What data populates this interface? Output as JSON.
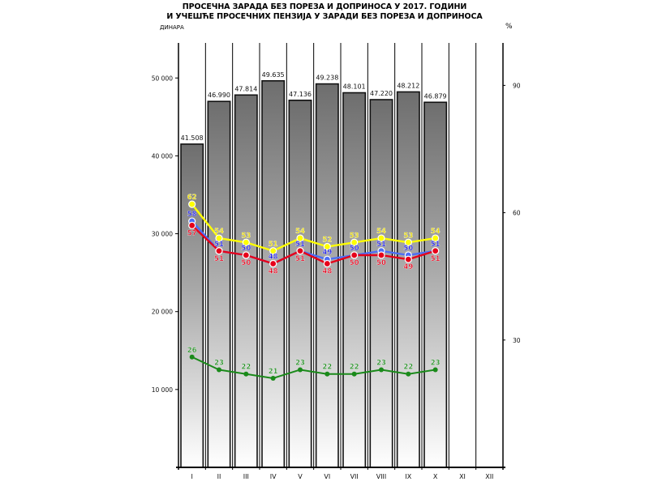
{
  "chart_data": {
    "type": "bar",
    "title": "ПРОСЕЧНА ЗАРАДА БЕЗ ПОРЕЗА И ДОПРИНОСА  У 2017. ГОДИНИ",
    "subtitle": "И УЧЕШЋЕ ПРОСЕЧНИХ ПЕНЗИЈА У ЗАРАДИ БЕЗ ПОРЕЗА И ДОПРИНОСА",
    "ylabel_left": "ДИНАРА",
    "ylabel_right": "%",
    "categories": [
      "I",
      "II",
      "III",
      "IV",
      "V",
      "VI",
      "VII",
      "VIII",
      "IX",
      "X",
      "XI",
      "XII"
    ],
    "ylim_left": [
      0,
      54500
    ],
    "ylim_right": [
      0,
      100
    ],
    "yticks_left": [
      {
        "value": 10000,
        "label": "10 000"
      },
      {
        "value": 20000,
        "label": "20 000"
      },
      {
        "value": 30000,
        "label": "30 000"
      },
      {
        "value": 40000,
        "label": "40 000"
      },
      {
        "value": 50000,
        "label": "50 000"
      }
    ],
    "yticks_right": [
      {
        "value": 30,
        "label": "30"
      },
      {
        "value": 60,
        "label": "60"
      },
      {
        "value": 90,
        "label": "90"
      }
    ],
    "bars": {
      "name": "Просечна зарада без пореза и доприноса",
      "axis": "left",
      "values": [
        41508,
        46990,
        47814,
        49635,
        47136,
        49238,
        48101,
        47220,
        48212,
        46879,
        null,
        null
      ],
      "labels": [
        "41.508",
        "46.990",
        "47.814",
        "49.635",
        "47.136",
        "49.238",
        "48.101",
        "47.220",
        "48.212",
        "46.879",
        "",
        ""
      ]
    },
    "series": [
      {
        "name": "yellow",
        "color": "#ffff00",
        "label_color": "#e6d800",
        "axis": "right",
        "values": [
          62,
          54,
          53,
          51,
          54,
          52,
          53,
          54,
          53,
          54,
          null,
          null
        ],
        "label_position": "above"
      },
      {
        "name": "blue",
        "color": "#4d6ef5",
        "label_color": "#1a1ae6",
        "axis": "right",
        "values": [
          58,
          51,
          50,
          48,
          51,
          49,
          50,
          51,
          50,
          51,
          null,
          null
        ],
        "label_position": "above"
      },
      {
        "name": "red",
        "color": "#e6001a",
        "label_color": "#e6001a",
        "axis": "right",
        "values": [
          57,
          51,
          50,
          48,
          51,
          48,
          50,
          50,
          49,
          51,
          null,
          null
        ],
        "label_position": "below"
      },
      {
        "name": "green",
        "color": "#1a8a1a",
        "label_color": "#1a8a1a",
        "axis": "right",
        "values": [
          26,
          23,
          22,
          21,
          23,
          22,
          22,
          23,
          22,
          23,
          null,
          null
        ],
        "label_position": "above"
      }
    ],
    "grid": false,
    "legend": "none"
  }
}
